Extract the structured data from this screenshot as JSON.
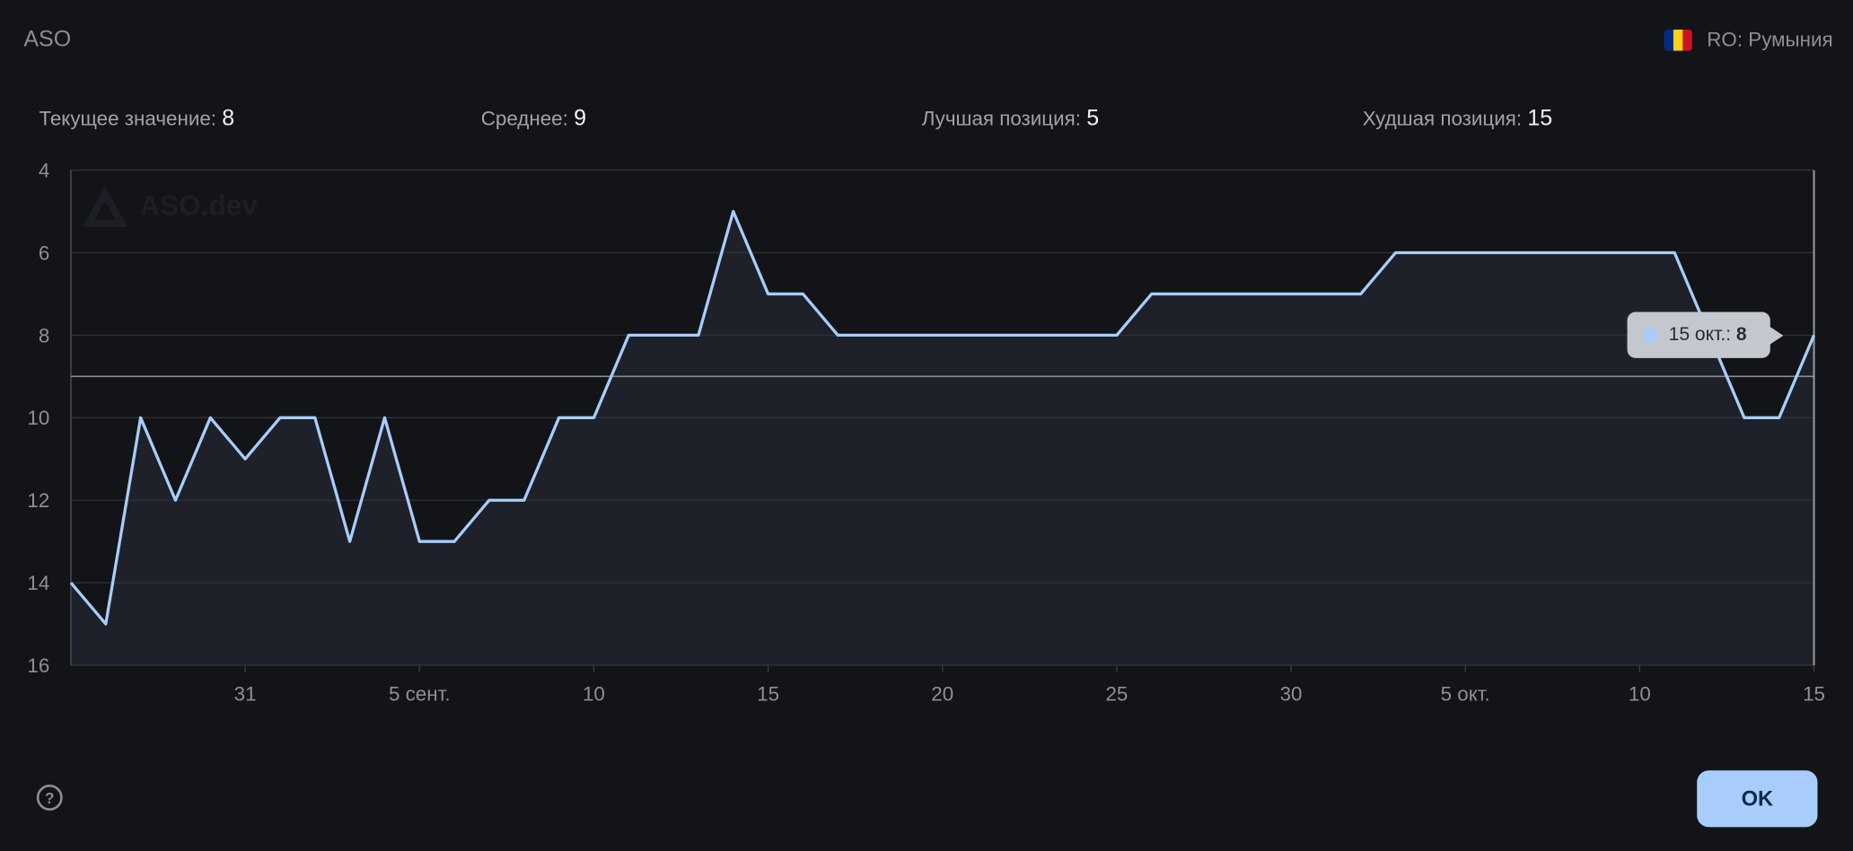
{
  "header": {
    "title": "ASO",
    "country": "RO: Румыния",
    "flag_colors": [
      "#002b7f",
      "#fcd116",
      "#ce1126"
    ]
  },
  "stats": [
    {
      "label": "Текущее значение:",
      "value": "8"
    },
    {
      "label": "Среднее:",
      "value": "9"
    },
    {
      "label": "Лучшая позиция:",
      "value": "5"
    },
    {
      "label": "Худшая позиция:",
      "value": "15"
    }
  ],
  "watermark": "ASO.dev",
  "tooltip": {
    "date": "15 окт.:",
    "value": "8"
  },
  "footer": {
    "ok_label": "OK",
    "help_icon": "question-circle-icon"
  },
  "colors": {
    "line": "#a8cdfb",
    "fill": "#1e212a",
    "background": "#121418",
    "average_line": "#8a8d93"
  },
  "chart_data": {
    "type": "area",
    "title": "",
    "xlabel": "",
    "ylabel": "",
    "y_inverted": true,
    "ylim": [
      16,
      4
    ],
    "y_ticks": [
      4,
      6,
      8,
      10,
      12,
      14,
      16
    ],
    "grid": true,
    "x": [
      "26.08",
      "27.08",
      "28.08",
      "29.08",
      "30.08",
      "31.08",
      "01.09",
      "02.09",
      "03.09",
      "04.09",
      "05.09",
      "06.09",
      "07.09",
      "08.09",
      "09.09",
      "10.09",
      "11.09",
      "12.09",
      "13.09",
      "14.09",
      "15.09",
      "16.09",
      "17.09",
      "18.09",
      "19.09",
      "20.09",
      "21.09",
      "22.09",
      "23.09",
      "24.09",
      "25.09",
      "26.09",
      "27.09",
      "28.09",
      "29.09",
      "30.09",
      "01.10",
      "02.10",
      "03.10",
      "04.10",
      "05.10",
      "06.10",
      "07.10",
      "08.10",
      "09.10",
      "10.10",
      "11.10",
      "12.10",
      "13.10",
      "14.10",
      "15.10"
    ],
    "values": [
      14,
      15,
      10,
      12,
      10,
      11,
      10,
      10,
      13,
      10,
      13,
      13,
      12,
      12,
      10,
      10,
      8,
      8,
      8,
      5,
      7,
      7,
      8,
      8,
      8,
      8,
      8,
      8,
      8,
      8,
      8,
      7,
      7,
      7,
      7,
      7,
      7,
      7,
      6,
      6,
      6,
      6,
      6,
      6,
      6,
      6,
      6,
      8,
      10,
      10,
      8
    ],
    "x_ticks": [
      {
        "index": 5,
        "label": "31"
      },
      {
        "index": 10,
        "label": "5 сент."
      },
      {
        "index": 15,
        "label": "10"
      },
      {
        "index": 20,
        "label": "15"
      },
      {
        "index": 25,
        "label": "20"
      },
      {
        "index": 30,
        "label": "25"
      },
      {
        "index": 35,
        "label": "30"
      },
      {
        "index": 40,
        "label": "5 окт."
      },
      {
        "index": 45,
        "label": "10"
      },
      {
        "index": 50,
        "label": "15"
      }
    ],
    "average": 9,
    "highlighted_index": 50
  }
}
